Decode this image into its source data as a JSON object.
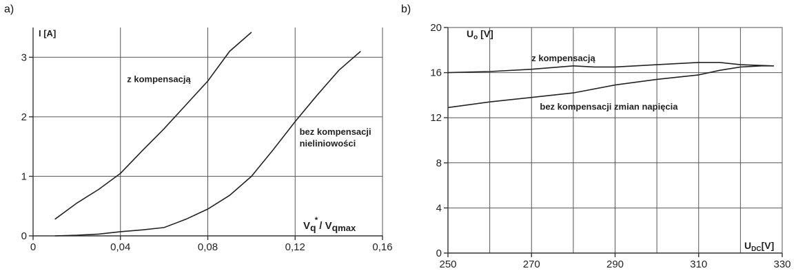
{
  "chart_data": [
    {
      "type": "line",
      "panel_label": "a)",
      "xlabel": {
        "main": "V",
        "sub": "q",
        "sup": "*",
        "sep": "/ V",
        "sub2": "q",
        "sub3": "max"
      },
      "ylabel": "I [A]",
      "xlim": [
        0,
        0.16
      ],
      "ylim": [
        0,
        3.5
      ],
      "xticks": [
        0,
        0.04,
        0.08,
        0.12,
        0.16
      ],
      "xtick_labels": [
        "0",
        "0,04",
        "0,08",
        "0,12",
        "0,16"
      ],
      "yticks": [
        0,
        1,
        2,
        3
      ],
      "ytick_labels": [
        "0",
        "1",
        "2",
        "3"
      ],
      "grid": true,
      "series": [
        {
          "name": "z kompensacją",
          "x": [
            0.01,
            0.02,
            0.03,
            0.04,
            0.05,
            0.06,
            0.07,
            0.08,
            0.09,
            0.1
          ],
          "y": [
            0.28,
            0.55,
            0.78,
            1.05,
            1.43,
            1.8,
            2.2,
            2.6,
            3.1,
            3.42
          ]
        },
        {
          "name": "bez kompensacji\nnieliniowości",
          "x": [
            0.01,
            0.02,
            0.03,
            0.04,
            0.05,
            0.06,
            0.07,
            0.08,
            0.09,
            0.1,
            0.11,
            0.12,
            0.13,
            0.14,
            0.15
          ],
          "y": [
            0.0,
            0.01,
            0.03,
            0.07,
            0.1,
            0.14,
            0.28,
            0.45,
            0.68,
            1.0,
            1.45,
            1.92,
            2.36,
            2.78,
            3.1
          ]
        }
      ],
      "annotations": [
        {
          "text": "z kompensacją",
          "x": 0.043,
          "y": 2.58
        },
        {
          "text": "bez kompensacji",
          "x": 0.122,
          "y": 1.7
        },
        {
          "text": "nieliniowości",
          "x": 0.122,
          "y": 1.5
        }
      ]
    },
    {
      "type": "line",
      "panel_label": "b)",
      "xlabel": {
        "main": "U",
        "sub": "DC",
        "unit": "[V]"
      },
      "ylabel": {
        "main": "U",
        "sub": "o",
        "unit": " [V]"
      },
      "xlim": [
        250,
        330
      ],
      "ylim": [
        0,
        20
      ],
      "xticks": [
        250,
        270,
        290,
        310,
        330
      ],
      "xtick_labels": [
        "250",
        "270",
        "290",
        "310",
        "330"
      ],
      "yticks": [
        0,
        4,
        8,
        12,
        16,
        20
      ],
      "ytick_labels": [
        "0",
        "4",
        "8",
        "12",
        "16",
        "20"
      ],
      "grid": true,
      "series": [
        {
          "name": "z kompensacją",
          "x": [
            250,
            260,
            270,
            280,
            285,
            290,
            300,
            310,
            315,
            320,
            328
          ],
          "y": [
            16.0,
            16.1,
            16.3,
            16.6,
            16.5,
            16.5,
            16.7,
            16.9,
            16.9,
            16.7,
            16.6
          ]
        },
        {
          "name": "bez kompensacji zmian napięcia",
          "x": [
            250,
            260,
            270,
            280,
            290,
            300,
            310,
            315,
            320,
            325,
            328
          ],
          "y": [
            12.9,
            13.4,
            13.8,
            14.2,
            14.9,
            15.4,
            15.8,
            16.2,
            16.5,
            16.6,
            16.6
          ]
        }
      ],
      "annotations": [
        {
          "text": "z kompensacją",
          "x": 270,
          "y": 17.0
        },
        {
          "text": "bez kompensacji zmian napięcia",
          "x": 272,
          "y": 12.7
        }
      ]
    }
  ]
}
